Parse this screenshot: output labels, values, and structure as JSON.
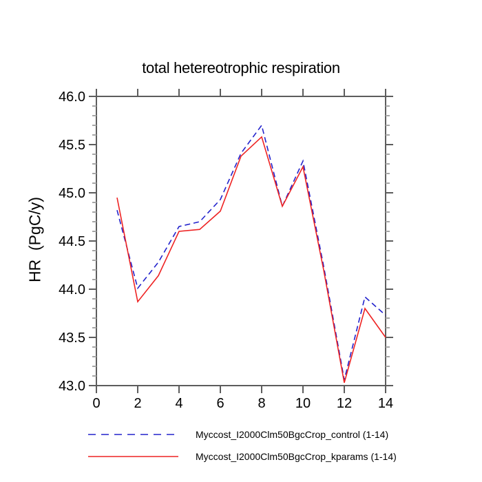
{
  "title": "total hetereotrophic respiration",
  "colors": {
    "background": "#ffffff",
    "axis": "#5c5c5c",
    "minor_tick": "#a6a6a6",
    "text": "#000000",
    "control_blue": "#2222cc",
    "kparams_red": "#ee2222"
  },
  "chart_data": {
    "type": "line",
    "title": "total hetereotrophic respiration",
    "xlabel": "",
    "ylabel": "HR  (PgC/y)",
    "xlim": [
      0,
      14
    ],
    "ylim": [
      43.0,
      46.0
    ],
    "x_major_ticks": [
      0,
      2,
      4,
      6,
      8,
      10,
      12,
      14
    ],
    "y_major_ticks": [
      43.0,
      43.5,
      44.0,
      44.5,
      45.0,
      45.5,
      46.0
    ],
    "y_minor_step": 0.1,
    "grid": false,
    "legend_position": "bottom",
    "x": [
      1,
      2,
      3,
      4,
      5,
      6,
      7,
      8,
      9,
      10,
      11,
      12,
      13,
      14
    ],
    "series": [
      {
        "name": "Myccost_I2000Clm50BgcCrop_control (1-14)",
        "color": "#2222cc",
        "style": "dashed",
        "values": [
          44.82,
          44.01,
          44.28,
          44.65,
          44.7,
          44.93,
          45.41,
          45.7,
          44.86,
          45.33,
          44.24,
          43.06,
          43.92,
          43.73
        ]
      },
      {
        "name": "Myccost_I2000Clm50BgcCrop_kparams (1-14)",
        "color": "#ee2222",
        "style": "solid",
        "values": [
          44.95,
          43.87,
          44.14,
          44.6,
          44.62,
          44.81,
          45.38,
          45.58,
          44.86,
          45.27,
          44.2,
          43.03,
          43.8,
          43.5
        ]
      }
    ]
  }
}
